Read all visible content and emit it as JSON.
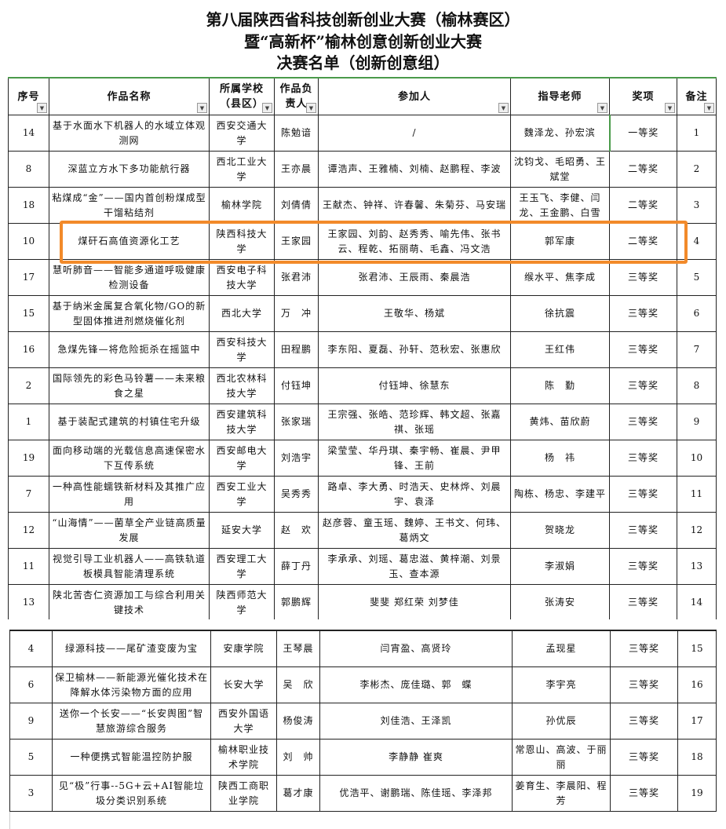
{
  "title": {
    "line1": "第八届陕西省科技创新创业大赛（榆林赛区）",
    "line2": "暨“高新杯”榆林创意创新创业大赛",
    "line3": "决赛名单（创新创意组）"
  },
  "headers": [
    "序号",
    "作品名称",
    "所属学校（县区）",
    "作品负责人",
    "参加人",
    "指导老师",
    "奖项",
    "备注"
  ],
  "filter_icon": "dropdown-arrow-icon",
  "highlight_color": "#f28a2a",
  "rows": [
    [
      "14",
      "基于水面水下机器人的水域立体观测网",
      "西安交通大学",
      "陈勉谙",
      "/",
      "魏泽龙、孙宏滨",
      "一等奖",
      "1"
    ],
    [
      "8",
      "深蓝立方水下多功能航行器",
      "西北工业大学",
      "王亦晨",
      "谭浩声、王雅楠、刘楠、赵鹏程、李波",
      "沈钧戈、毛昭勇、王斌堂",
      "二等奖",
      "2"
    ],
    [
      "18",
      "粘煤成“金”——国内首创粉煤成型干馏粘结剂",
      "榆林学院",
      "刘倩倩",
      "王献杰、钟祥、许春馨、朱菊芬、马安瑞",
      "王玉飞、李健、闫龙、王金鹏、白雪",
      "二等奖",
      "3"
    ],
    [
      "10",
      "煤矸石高值资源化工艺",
      "陕西科技大学",
      "王家园",
      "王家园、刘韵、赵秀秀、喻先伟、张书云、程乾、拓丽萌、毛鑫、冯文浩",
      "郭军康",
      "二等奖",
      "4"
    ],
    [
      "17",
      "慧听肺音——智能多通道呼吸健康检测设备",
      "西安电子科技大学",
      "张君沛",
      "张君沛、王辰雨、秦晨浩",
      "缑水平、焦李成",
      "三等奖",
      "5"
    ],
    [
      "15",
      "基于纳米金属复合氧化物/GO的新型固体推进剂燃烧催化剂",
      "西北大学",
      "万　冲",
      "王敬华、杨斌",
      "徐抗震",
      "三等奖",
      "6"
    ],
    [
      "16",
      "急煤先锋—将危险扼杀在摇篮中",
      "西安科技大学",
      "田程鹏",
      "李东阳、夏磊、孙轩、范秋宏、张惠欣",
      "王红伟",
      "三等奖",
      "7"
    ],
    [
      "2",
      "国际领先的彩色马铃薯——未来粮食之星",
      "西北农林科技大学",
      "付钰坤",
      "付钰坤、徐慧东",
      "陈　勤",
      "三等奖",
      "8"
    ],
    [
      "1",
      "基于装配式建筑的村镇住宅升级",
      "西安建筑科技大学",
      "张家瑞",
      "王宗强、张皓、范珍辉、韩文超、张嘉祺、张瑶",
      "黄炜、苗欣蔚",
      "三等奖",
      "9"
    ],
    [
      "19",
      "面向移动端的光载信息高速保密水下互传系统",
      "西安邮电大学",
      "刘浩宇",
      "梁莹莹、华丹琪、秦宇畅、崔晨、尹甲锋、王前",
      "杨　祎",
      "三等奖",
      "10"
    ],
    [
      "7",
      "一种高性能蠕铁新材料及其推广应用",
      "西安工业大学",
      "吴秀秀",
      "路卓、李大勇、时浩天、史林烨、刘晨宇、袁泽",
      "陶栋、杨忠、李建平",
      "三等奖",
      "11"
    ],
    [
      "12",
      "“山海情”——菌草全产业链高质量发展",
      "延安大学",
      "赵　欢",
      "赵彦蓉、童玉瑶、魏婷、王书文、何玮、葛炳文",
      "贺晓龙",
      "三等奖",
      "12"
    ],
    [
      "11",
      "视觉引导工业机器人——高铁轨道板模具智能清理系统",
      "西安理工大学",
      "薛丁丹",
      "李承承、刘瑶、葛忠滋、黄梓潮、刘景玉、查本源",
      "李淑娟",
      "三等奖",
      "13"
    ],
    [
      "13",
      "陕北苦杏仁资源加工与综合利用关键技术",
      "陕西师范大学",
      "郭鹏辉",
      "斐斐 郑红荣 刘梦佳",
      "张涛安",
      "三等奖",
      "14"
    ]
  ],
  "rows2": [
    [
      "4",
      "绿源科技——尾矿渣变废为宝",
      "安康学院",
      "王琴晨",
      "闫宵盈、高贤玲",
      "孟现星",
      "三等奖",
      "15"
    ],
    [
      "6",
      "保卫榆林——新能源光催化技术在降解水体污染物方面的应用",
      "长安大学",
      "吴　欣",
      "李彬杰、庞佳璐、郭　蝶",
      "李宇亮",
      "三等奖",
      "16"
    ],
    [
      "9",
      "送你一个长安——“长安舆图”智慧旅游综合服务",
      "西安外国语大学",
      "杨俊涛",
      "刘佳浩、王泽凯",
      "孙优辰",
      "三等奖",
      "17"
    ],
    [
      "5",
      "一种便携式智能温控防护服",
      "榆林职业技术学院",
      "刘　帅",
      "李静静 崔爽",
      "常恩山、高波、于丽丽",
      "三等奖",
      "18"
    ],
    [
      "3",
      "见“极”行事--5G+云+AI智能垃圾分类识别系统",
      "陕西工商职业学院",
      "葛才康",
      "优浩平、谢鹏瑞、陈佳瑶、李泽邦",
      "姜育生、李晨阳、程芳",
      "三等奖",
      "19"
    ]
  ]
}
